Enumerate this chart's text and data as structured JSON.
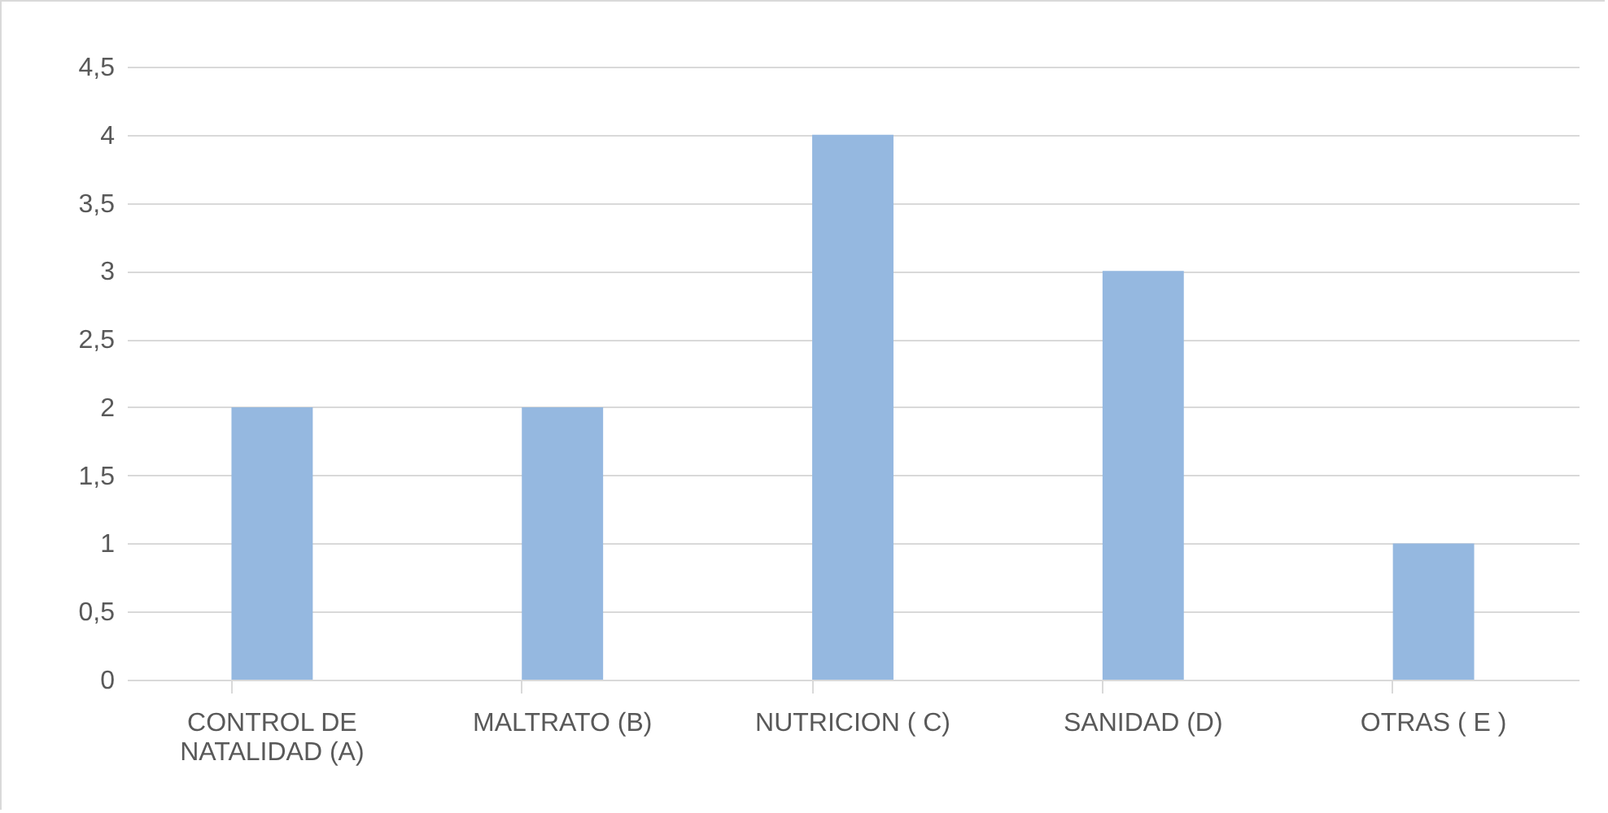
{
  "chart_data": {
    "type": "bar",
    "categories": [
      "CONTROL DE NATALIDAD (A)",
      "MALTRATO (B)",
      "NUTRICION ( C)",
      "SANIDAD  (D)",
      "OTRAS ( E )"
    ],
    "values": [
      2,
      2,
      4,
      3,
      1
    ],
    "color": "#95b8e0",
    "ylim": [
      0,
      4.5
    ],
    "yticks": [
      0,
      {
        "value": 0.5,
        "label": "0,5"
      },
      1,
      {
        "value": 1.5,
        "label": "1,5"
      },
      2,
      {
        "value": 2.5,
        "label": "2,5"
      },
      3,
      {
        "value": 3.5,
        "label": "3,5"
      },
      4,
      {
        "value": 4.5,
        "label": "4,5"
      }
    ],
    "grid": "y"
  }
}
